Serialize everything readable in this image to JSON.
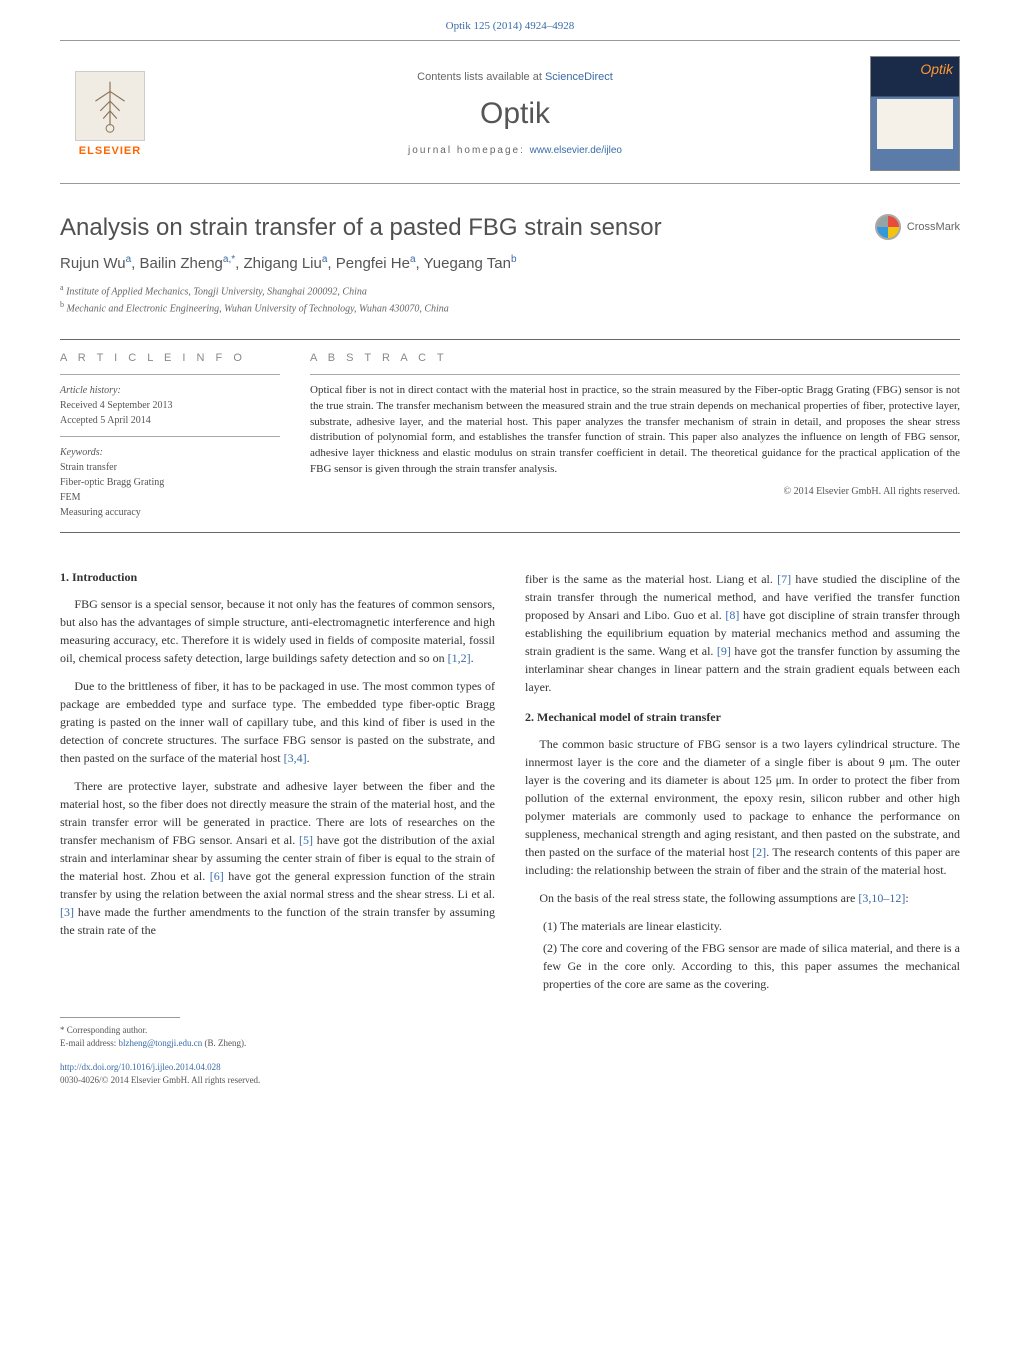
{
  "header": {
    "citation": "Optik 125 (2014) 4924–4928",
    "contentsLine": "Contents lists available at ",
    "contentsLink": "ScienceDirect",
    "journalName": "Optik",
    "homepageLabel": "journal homepage: ",
    "homepageUrl": "www.elsevier.de/ijleo",
    "elsevierLabel": "ELSEVIER",
    "coverTitle": "Optik"
  },
  "crossmark": {
    "label": "CrossMark"
  },
  "title": "Analysis on strain transfer of a pasted FBG strain sensor",
  "authors": "Rujun Wu<sup>a</sup>, Bailin Zheng<sup>a,*</sup>, Zhigang Liu<sup>a</sup>, Pengfei He<sup>a</sup>, Yuegang Tan<sup>b</sup>",
  "affiliations": [
    "Institute of Applied Mechanics, Tongji University, Shanghai 200092, China",
    "Mechanic and Electronic Engineering, Wuhan University of Technology, Wuhan 430070, China"
  ],
  "articleInfo": {
    "heading": "A R T I C L E   I N F O",
    "historyLabel": "Article history:",
    "received": "Received 4 September 2013",
    "accepted": "Accepted 5 April 2014",
    "keywordsLabel": "Keywords:",
    "keywords": [
      "Strain transfer",
      "Fiber-optic Bragg Grating",
      "FEM",
      "Measuring accuracy"
    ]
  },
  "abstract": {
    "heading": "A B S T R A C T",
    "text": "Optical fiber is not in direct contact with the material host in practice, so the strain measured by the Fiber-optic Bragg Grating (FBG) sensor is not the true strain. The transfer mechanism between the measured strain and the true strain depends on mechanical properties of fiber, protective layer, substrate, adhesive layer, and the material host. This paper analyzes the transfer mechanism of strain in detail, and proposes the shear stress distribution of polynomial form, and establishes the transfer function of strain. This paper also analyzes the influence on length of FBG sensor, adhesive layer thickness and elastic modulus on strain transfer coefficient in detail. The theoretical guidance for the practical application of the FBG sensor is given through the strain transfer analysis.",
    "copyright": "© 2014 Elsevier GmbH. All rights reserved."
  },
  "sections": {
    "intro": {
      "heading": "1. Introduction",
      "p1": "FBG sensor is a special sensor, because it not only has the features of common sensors, but also has the advantages of simple structure, anti-electromagnetic interference and high measuring accuracy, etc. Therefore it is widely used in fields of composite material, fossil oil, chemical process safety detection, large buildings safety detection and so on ",
      "p1ref": "[1,2]",
      "p2a": "Due to the brittleness of fiber, it has to be packaged in use. The most common types of package are embedded type and surface type. The embedded type fiber-optic Bragg grating is pasted on the inner wall of capillary tube, and this kind of fiber is used in the detection of concrete structures. The surface FBG sensor is pasted on the substrate, and then pasted on the surface of the material host ",
      "p2ref": "[3,4]",
      "p3a": "There are protective layer, substrate and adhesive layer between the fiber and the material host, so the fiber does not directly measure the strain of the material host, and the strain transfer error will be generated in practice. There are lots of researches on the transfer mechanism of FBG sensor. Ansari et al. ",
      "p3ref1": "[5]",
      "p3b": " have got the distribution of the axial strain and interlaminar shear by assuming the center strain of fiber is equal to the strain of the material host. Zhou et al. ",
      "p3ref2": "[6]",
      "p3c": " have got the general expression function of the strain transfer by using the relation between the axial normal stress and the shear stress. Li et al. ",
      "p3ref3": "[3]",
      "p3d": " have made the further amendments to the function of the strain transfer by assuming the strain rate of the"
    },
    "introContCol2": {
      "p1a": "fiber is the same as the material host. Liang et al. ",
      "p1r1": "[7]",
      "p1b": " have studied the discipline of the strain transfer through the numerical method, and have verified the transfer function proposed by Ansari and Libo. Guo et al. ",
      "p1r2": "[8]",
      "p1c": " have got discipline of strain transfer through establishing the equilibrium equation by material mechanics method and assuming the strain gradient is the same. Wang et al. ",
      "p1r3": "[9]",
      "p1d": " have got the transfer function by assuming the interlaminar shear changes in linear pattern and the strain gradient equals between each layer."
    },
    "mechModel": {
      "heading": "2. Mechanical model of strain transfer",
      "p1a": "The common basic structure of FBG sensor is a two layers cylindrical structure. The innermost layer is the core and the diameter of a single fiber is about 9 μm. The outer layer is the covering and its diameter is about 125 μm. In order to protect the fiber from pollution of the external environment, the epoxy resin, silicon rubber and other high polymer materials are commonly used to package to enhance the performance on suppleness, mechanical strength and aging resistant, and then pasted on the substrate, and then pasted on the surface of the material host ",
      "p1ref": "[2]",
      "p1b": ". The research contents of this paper are including: the relationship between the strain of fiber and the strain of the material host.",
      "p2a": "On the basis of the real stress state, the following assumptions are ",
      "p2ref": "[3,10–12]",
      "p2b": ":",
      "li1": "The materials are linear elasticity.",
      "li2": "The core and covering of the FBG sensor are made of silica material, and there is a few Ge in the core only. According to this, this paper assumes the mechanical properties of the core are same as the covering."
    }
  },
  "footnotes": {
    "corrLabel": "* Corresponding author.",
    "emailLabel": "E-mail address: ",
    "email": "blzheng@tongji.edu.cn",
    "emailPerson": " (B. Zheng)."
  },
  "footer": {
    "doi": "http://dx.doi.org/10.1016/j.ijleo.2014.04.028",
    "issn": "0030-4026/© 2014 Elsevier GmbH. All rights reserved."
  }
}
